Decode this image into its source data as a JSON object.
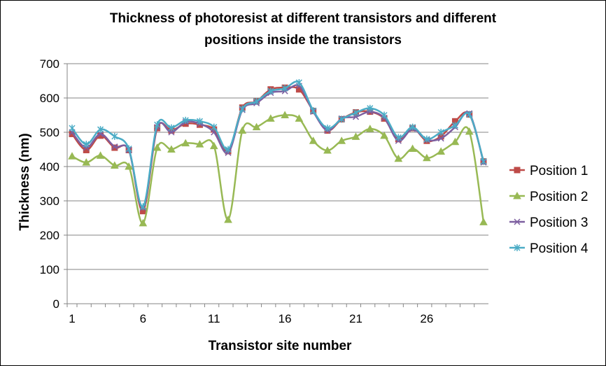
{
  "chart_data": {
    "type": "line",
    "title_lines": [
      "Thickness of photoresist at different transistors and different",
      "positions inside the transistors"
    ],
    "xlabel": "Transistor site number",
    "ylabel": "Thickness (nm)",
    "ylim": [
      0,
      700
    ],
    "yticks": [
      0,
      100,
      200,
      300,
      400,
      500,
      600,
      700
    ],
    "xticks": [
      1,
      6,
      11,
      16,
      21,
      26
    ],
    "xlim": [
      1,
      30
    ],
    "grid": "horizontal",
    "legend_position": "right",
    "x": [
      1,
      2,
      3,
      4,
      5,
      6,
      7,
      8,
      9,
      10,
      11,
      12,
      13,
      14,
      15,
      16,
      17,
      18,
      19,
      20,
      21,
      22,
      23,
      24,
      25,
      26,
      27,
      28,
      29,
      30
    ],
    "series": [
      {
        "name": "Position 1",
        "color": "#BE4B48",
        "marker": "square",
        "values": [
          495,
          448,
          490,
          455,
          448,
          270,
          512,
          505,
          525,
          522,
          508,
          445,
          572,
          590,
          625,
          630,
          625,
          562,
          505,
          538,
          558,
          560,
          540,
          480,
          512,
          475,
          488,
          532,
          552,
          415
        ]
      },
      {
        "name": "Position 2",
        "color": "#98B954",
        "marker": "triangle",
        "values": [
          430,
          412,
          432,
          403,
          400,
          235,
          455,
          450,
          468,
          465,
          460,
          245,
          505,
          515,
          540,
          550,
          540,
          475,
          447,
          475,
          487,
          510,
          490,
          423,
          452,
          425,
          444,
          472,
          502,
          238
        ]
      },
      {
        "name": "Position 3",
        "color": "#7D5FA0",
        "marker": "x",
        "values": [
          500,
          455,
          495,
          458,
          448,
          280,
          515,
          500,
          530,
          525,
          500,
          440,
          565,
          585,
          615,
          620,
          635,
          560,
          505,
          540,
          545,
          560,
          542,
          475,
          510,
          478,
          482,
          515,
          555,
          412
        ]
      },
      {
        "name": "Position 4",
        "color": "#4BACC6",
        "marker": "star",
        "values": [
          512,
          465,
          508,
          488,
          452,
          283,
          522,
          513,
          535,
          532,
          515,
          450,
          568,
          590,
          620,
          628,
          645,
          563,
          512,
          538,
          557,
          570,
          550,
          485,
          515,
          480,
          500,
          520,
          552,
          415
        ]
      }
    ]
  }
}
